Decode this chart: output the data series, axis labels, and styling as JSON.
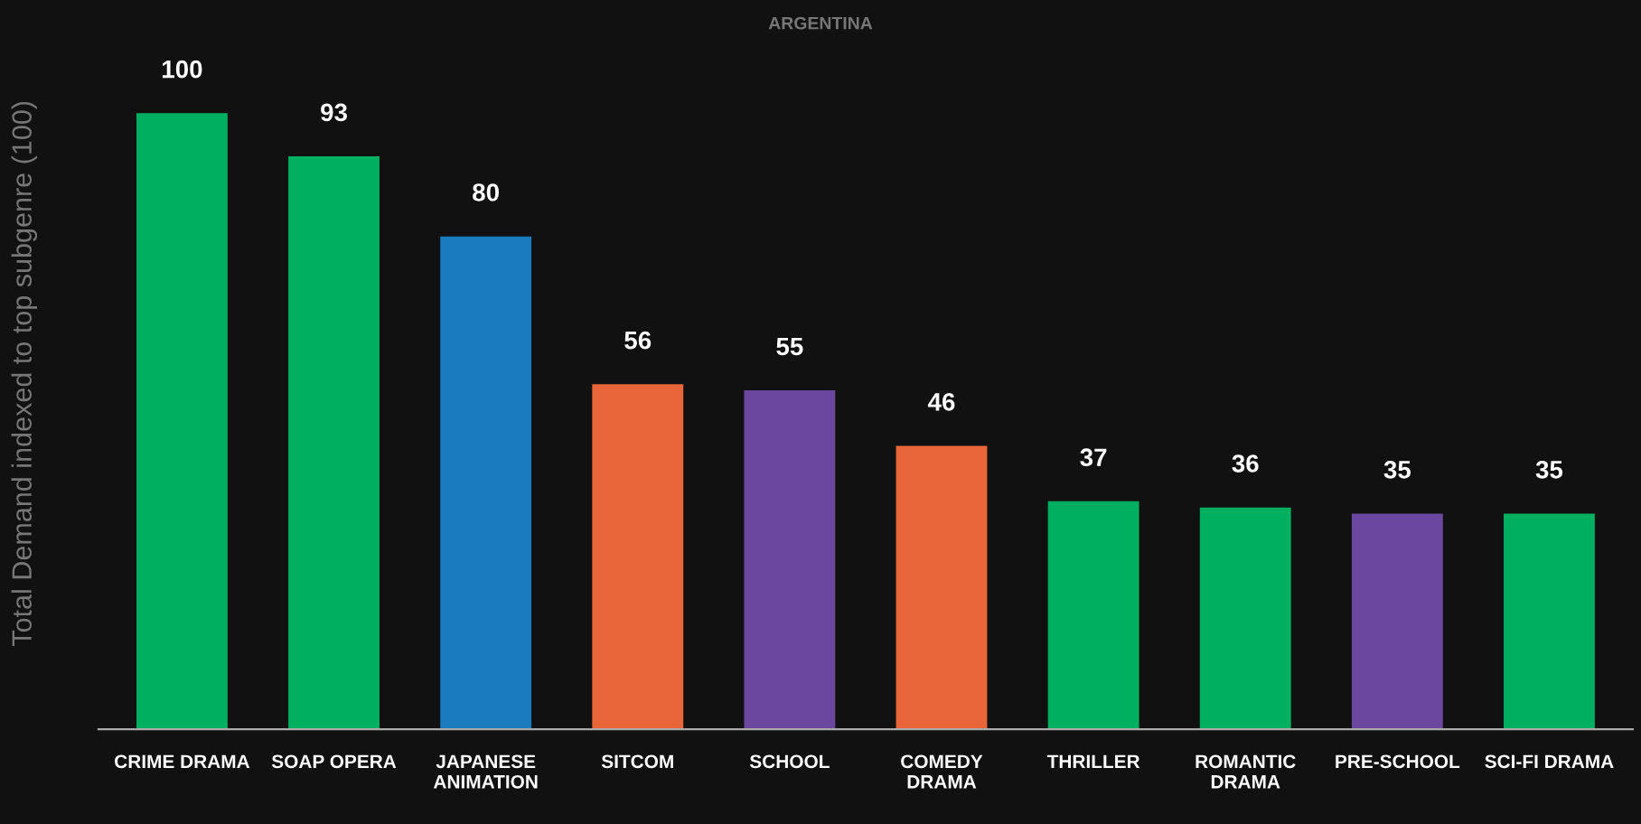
{
  "chart_data": {
    "type": "bar",
    "title": "ARGENTINA",
    "ylabel": "Total Demand indexed to top subgenre (100)",
    "categories": [
      "CRIME DRAMA",
      "SOAP OPERA",
      "JAPANESE\nANIMATION",
      "SITCOM",
      "SCHOOL",
      "COMEDY\nDRAMA",
      "THRILLER",
      "ROMANTIC\nDRAMA",
      "PRE-SCHOOL",
      "SCI-FI DRAMA"
    ],
    "values": [
      100,
      93,
      80,
      56,
      55,
      46,
      37,
      36,
      35,
      35
    ],
    "colors": [
      "#00b060",
      "#00b060",
      "#1b7bbf",
      "#e8663a",
      "#6b47a0",
      "#e8663a",
      "#00b060",
      "#00b060",
      "#6b47a0",
      "#00b060"
    ],
    "data_labels": true,
    "grid": false,
    "legend": false,
    "tick_labels": "x"
  }
}
